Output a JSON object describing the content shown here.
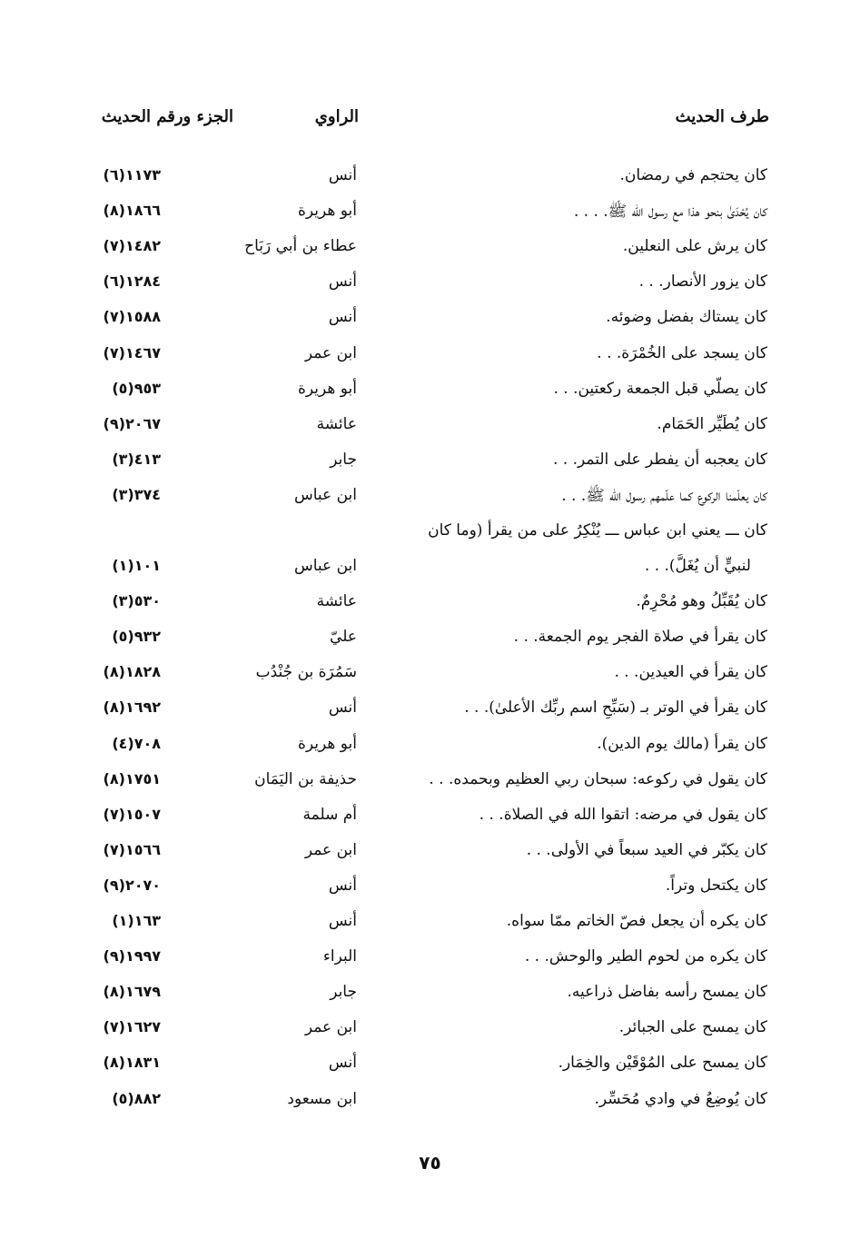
{
  "header": {
    "hadith_col": "طرف الحديث",
    "narrator_col": "الراوي",
    "ref_col": "الجزء ورقم الحديث"
  },
  "rows": [
    {
      "text": "كان يحتجم في رمضان.",
      "narrator": "أنس",
      "ref": "١١٧٣(٦)"
    },
    {
      "text": "كان يُحْدَىٰ بنحو هذا مع رسول الله ﷺ. . . .",
      "narrator": "أبو هريرة",
      "ref": "١٨٦٦(٨)"
    },
    {
      "text": "كان يرش على النعلين.",
      "narrator": "عطاء بن أبي رَبَاح",
      "ref": "١٤٨٢(٧)"
    },
    {
      "text": "كان يزور الأنصار. . .",
      "narrator": "أنس",
      "ref": "١٢٨٤(٦)"
    },
    {
      "text": "كان يستاك بفضل وضوئه.",
      "narrator": "أنس",
      "ref": "١٥٨٨(٧)"
    },
    {
      "text": "كان يسجد على الخُمْرَة. . .",
      "narrator": "ابن عمر",
      "ref": "١٤٦٧(٧)"
    },
    {
      "text": "كان يصلّي قبل الجمعة ركعتين. . .",
      "narrator": "أبو هريرة",
      "ref": "٩٥٣(٥)"
    },
    {
      "text": "كان يُطَيِّر الحَمَام.",
      "narrator": "عائشة",
      "ref": "٢٠٦٧(٩)"
    },
    {
      "text": "كان يعجبه أن يفطر على التمر. . .",
      "narrator": "جابر",
      "ref": "٤١٣(٣)"
    },
    {
      "text": "كان يعلّمنا الركوع كما علّمهم رسول الله ﷺ. . .",
      "narrator": "ابن عباس",
      "ref": "٣٧٤(٣)"
    },
    {
      "text": "كان ـــ يعني ابن عباس ـــ يُنْكِرُ على من يقرأ (وما كان",
      "text2": "لنبيٍّ أن يُغَلَّ). . .",
      "narrator": "ابن عباس",
      "ref": "١٠١(١)"
    },
    {
      "text": "كان يُقَبِّلُ وهو مُحْرِمٌ.",
      "narrator": "عائشة",
      "ref": "٥٣٠(٣)"
    },
    {
      "text": "كان يقرأ في صلاة الفجر يوم الجمعة. . .",
      "narrator": "عليّ",
      "ref": "٩٣٢(٥)"
    },
    {
      "text": "كان يقرأ في العيدين. . .",
      "narrator": "سَمُرَة بن جُنْدُب",
      "ref": "١٨٢٨(٨)"
    },
    {
      "text": "كان يقرأ في الوتر بـ (سَبِّحِ اسم ربِّك الأعلىٰ). . .",
      "narrator": "أنس",
      "ref": "١٦٩٢(٨)"
    },
    {
      "text": "كان يقرأ (مالك يوم الدين).",
      "narrator": "أبو هريرة",
      "ref": "٧٠٨(٤)"
    },
    {
      "text": "كان يقول في ركوعه: سبحان ربي العظيم وبحمده. . .",
      "narrator": "حذيفة بن اليَمَان",
      "ref": "١٧٥١(٨)"
    },
    {
      "text": "كان يقول في مرضه: اتقوا الله في الصلاة. . .",
      "narrator": "أم سلمة",
      "ref": "١٥٠٧(٧)"
    },
    {
      "text": "كان يكبّر في العيد سبعاً في الأولى. . .",
      "narrator": "ابن عمر",
      "ref": "١٥٦٦(٧)"
    },
    {
      "text": "كان يكتحل وتراً.",
      "narrator": "أنس",
      "ref": "٢٠٧٠(٩)"
    },
    {
      "text": "كان يكره أن يجعل فصّ الخاتم ممّا سواه.",
      "narrator": "أنس",
      "ref": "١٦٣(١)"
    },
    {
      "text": "كان يكره من لحوم الطير والوحش. . .",
      "narrator": "البراء",
      "ref": "١٩٩٧(٩)"
    },
    {
      "text": "كان يمسح رأسه بفاضل ذراعيه.",
      "narrator": "جابر",
      "ref": "١٦٧٩(٨)"
    },
    {
      "text": "كان يمسح على الجبائر.",
      "narrator": "ابن عمر",
      "ref": "١٦٢٧(٧)"
    },
    {
      "text": "كان يمسح على المُوْقَيْن والخِمَار.",
      "narrator": "أنس",
      "ref": "١٨٣١(٨)"
    },
    {
      "text": "كان يُوضِعُ في وادي مُحَسِّر.",
      "narrator": "ابن مسعود",
      "ref": "٨٨٢(٥)"
    }
  ],
  "page_number": "٧٥"
}
